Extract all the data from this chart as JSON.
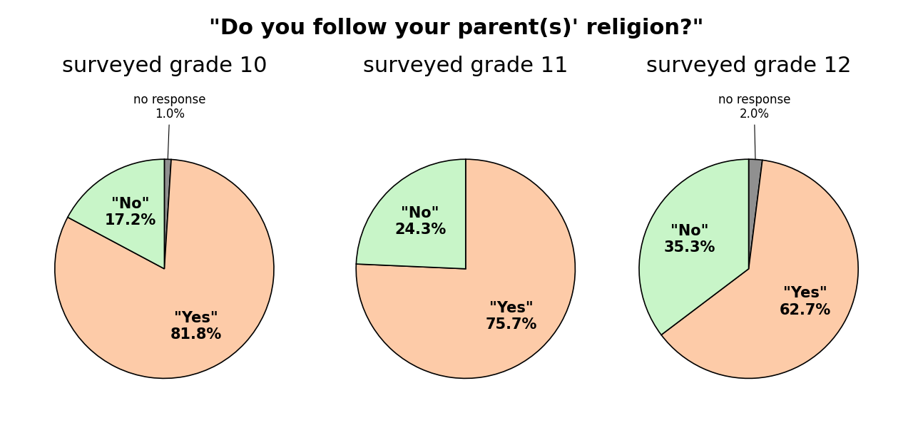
{
  "title": "\"Do you follow your parent(s)' religion?\"",
  "charts": [
    {
      "subtitle": "surveyed grade 10",
      "yes_pct": 81.8,
      "no_pct": 17.2,
      "nr_pct": 1.0,
      "outside_label": "no response\n1.0%"
    },
    {
      "subtitle": "surveyed grade 11",
      "yes_pct": 75.7,
      "no_pct": 24.3,
      "nr_pct": 0.0,
      "outside_label": null
    },
    {
      "subtitle": "surveyed grade 12",
      "yes_pct": 62.7,
      "no_pct": 35.3,
      "nr_pct": 2.0,
      "outside_label": "no response\n2.0%"
    }
  ],
  "yes_color": "#FDCBA8",
  "no_color": "#C8F5C8",
  "nr_color": "#909090",
  "bg_color": "#FFFFFF",
  "title_fontsize": 22,
  "subtitle_fontsize": 22,
  "label_fontsize": 15,
  "annot_fontsize": 12
}
